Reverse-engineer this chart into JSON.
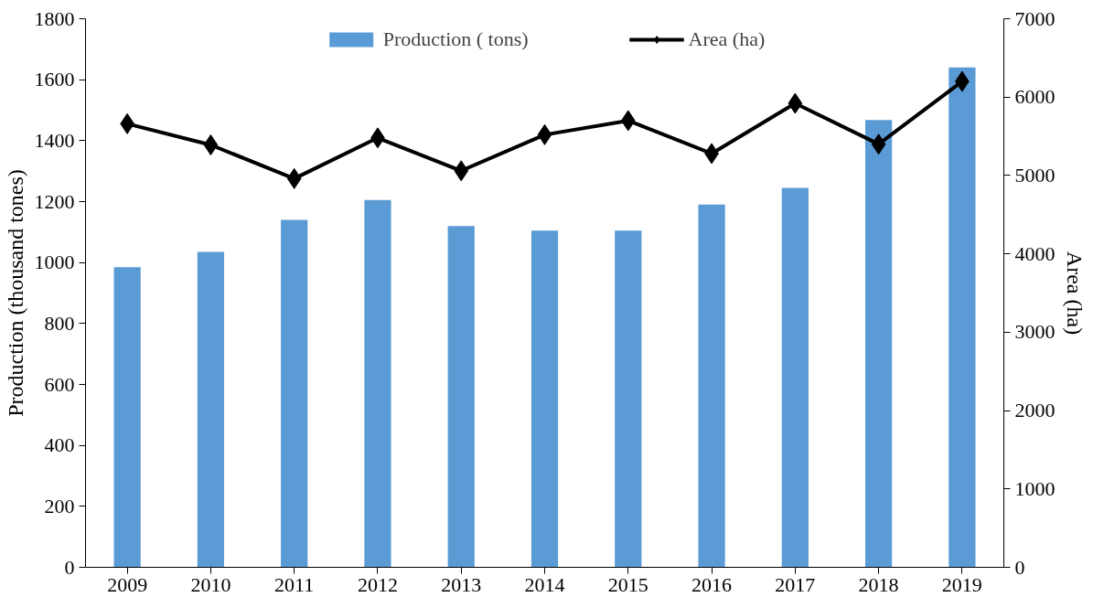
{
  "chart_data": {
    "type": "bar",
    "categories": [
      "2009",
      "2010",
      "2011",
      "2012",
      "2013",
      "2014",
      "2015",
      "2016",
      "2017",
      "2018",
      "2019"
    ],
    "series": [
      {
        "name": "Production ( tons)",
        "color": "#5b9bd5",
        "values": [
          985,
          1035,
          1140,
          1205,
          1120,
          1105,
          1105,
          1190,
          1245,
          1468,
          1640
        ]
      },
      {
        "name": "Area (ha)",
        "type": "line",
        "axis": "y2",
        "color": "#000000",
        "marker": "diamond",
        "values": [
          5660,
          5390,
          4960,
          5480,
          5060,
          5520,
          5700,
          5280,
          5920,
          5400,
          6200
        ]
      }
    ],
    "ylabel": "Production (thousand tones)",
    "y2label": "Area (ha)",
    "ylim": [
      0,
      1800
    ],
    "yticks": [
      0,
      200,
      400,
      600,
      800,
      1000,
      1200,
      1400,
      1600,
      1800
    ],
    "y2lim": [
      0,
      7000
    ],
    "y2ticks": [
      0,
      1000,
      2000,
      3000,
      4000,
      5000,
      6000,
      7000
    ],
    "grid": false,
    "legend": "top"
  }
}
